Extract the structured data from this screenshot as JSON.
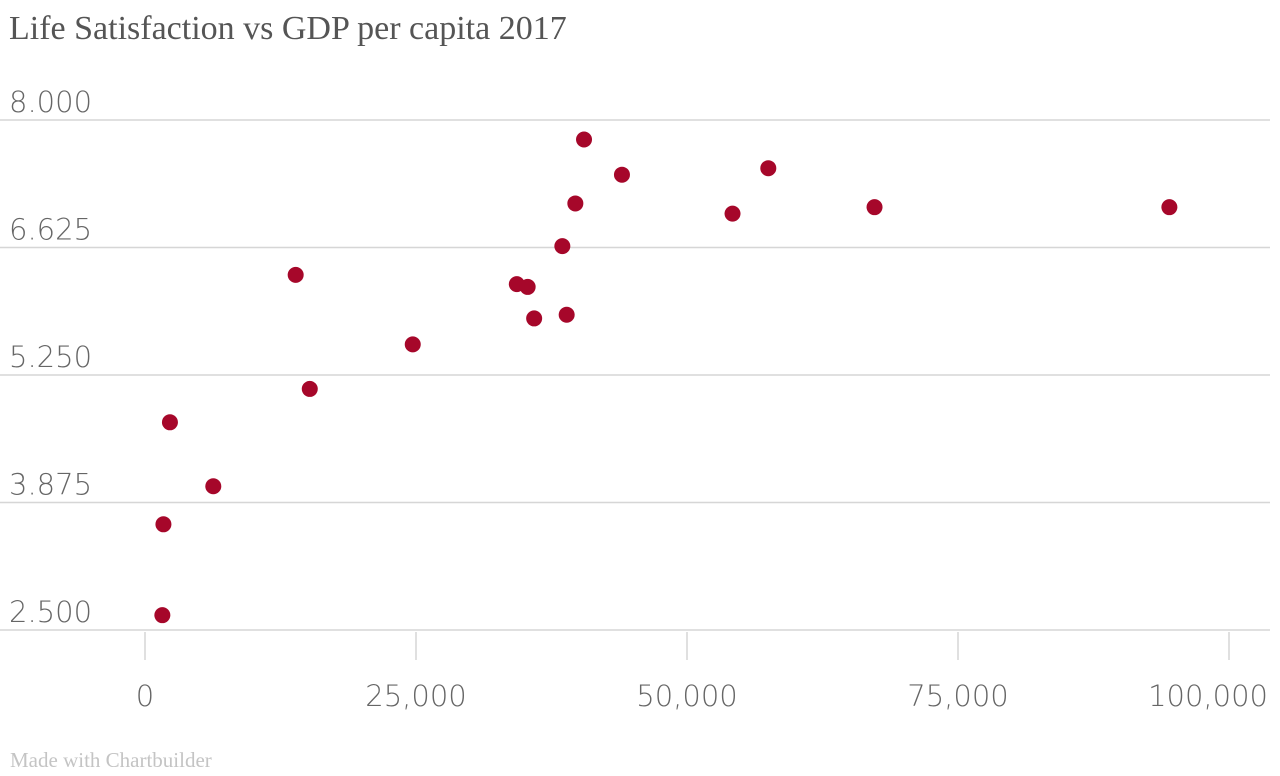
{
  "title": "Life Satisfaction vs GDP per capita 2017",
  "credit": "Made with Chartbuilder",
  "chart_data": {
    "type": "scatter",
    "title": "Life Satisfaction vs GDP per capita 2017",
    "xlabel": "",
    "ylabel": "",
    "xlim": [
      0,
      100000
    ],
    "ylim": [
      2.5,
      8
    ],
    "x_ticks": [
      0,
      25000,
      50000,
      75000,
      100000
    ],
    "x_tick_labels": [
      "0",
      "25,000",
      "50,000",
      "75,000",
      "100,000"
    ],
    "y_ticks": [
      2.5,
      3.875,
      5.25,
      6.625,
      8
    ],
    "y_tick_labels": [
      "2.500",
      "3.875",
      "5.250",
      "6.625",
      "8.000"
    ],
    "grid": "horizontal",
    "marker_color": "#a6072a",
    "points": [
      {
        "x": 40500,
        "y": 7.79
      },
      {
        "x": 44000,
        "y": 7.41
      },
      {
        "x": 57500,
        "y": 7.48
      },
      {
        "x": 39700,
        "y": 7.1
      },
      {
        "x": 54200,
        "y": 6.99
      },
      {
        "x": 67300,
        "y": 7.06
      },
      {
        "x": 94500,
        "y": 7.06
      },
      {
        "x": 38500,
        "y": 6.64
      },
      {
        "x": 13900,
        "y": 6.33
      },
      {
        "x": 34300,
        "y": 6.23
      },
      {
        "x": 35300,
        "y": 6.2
      },
      {
        "x": 35900,
        "y": 5.86
      },
      {
        "x": 38900,
        "y": 5.9
      },
      {
        "x": 24700,
        "y": 5.58
      },
      {
        "x": 15200,
        "y": 5.1
      },
      {
        "x": 2300,
        "y": 4.74
      },
      {
        "x": 6300,
        "y": 4.05
      },
      {
        "x": 1700,
        "y": 3.64
      },
      {
        "x": 1600,
        "y": 2.66
      }
    ]
  }
}
